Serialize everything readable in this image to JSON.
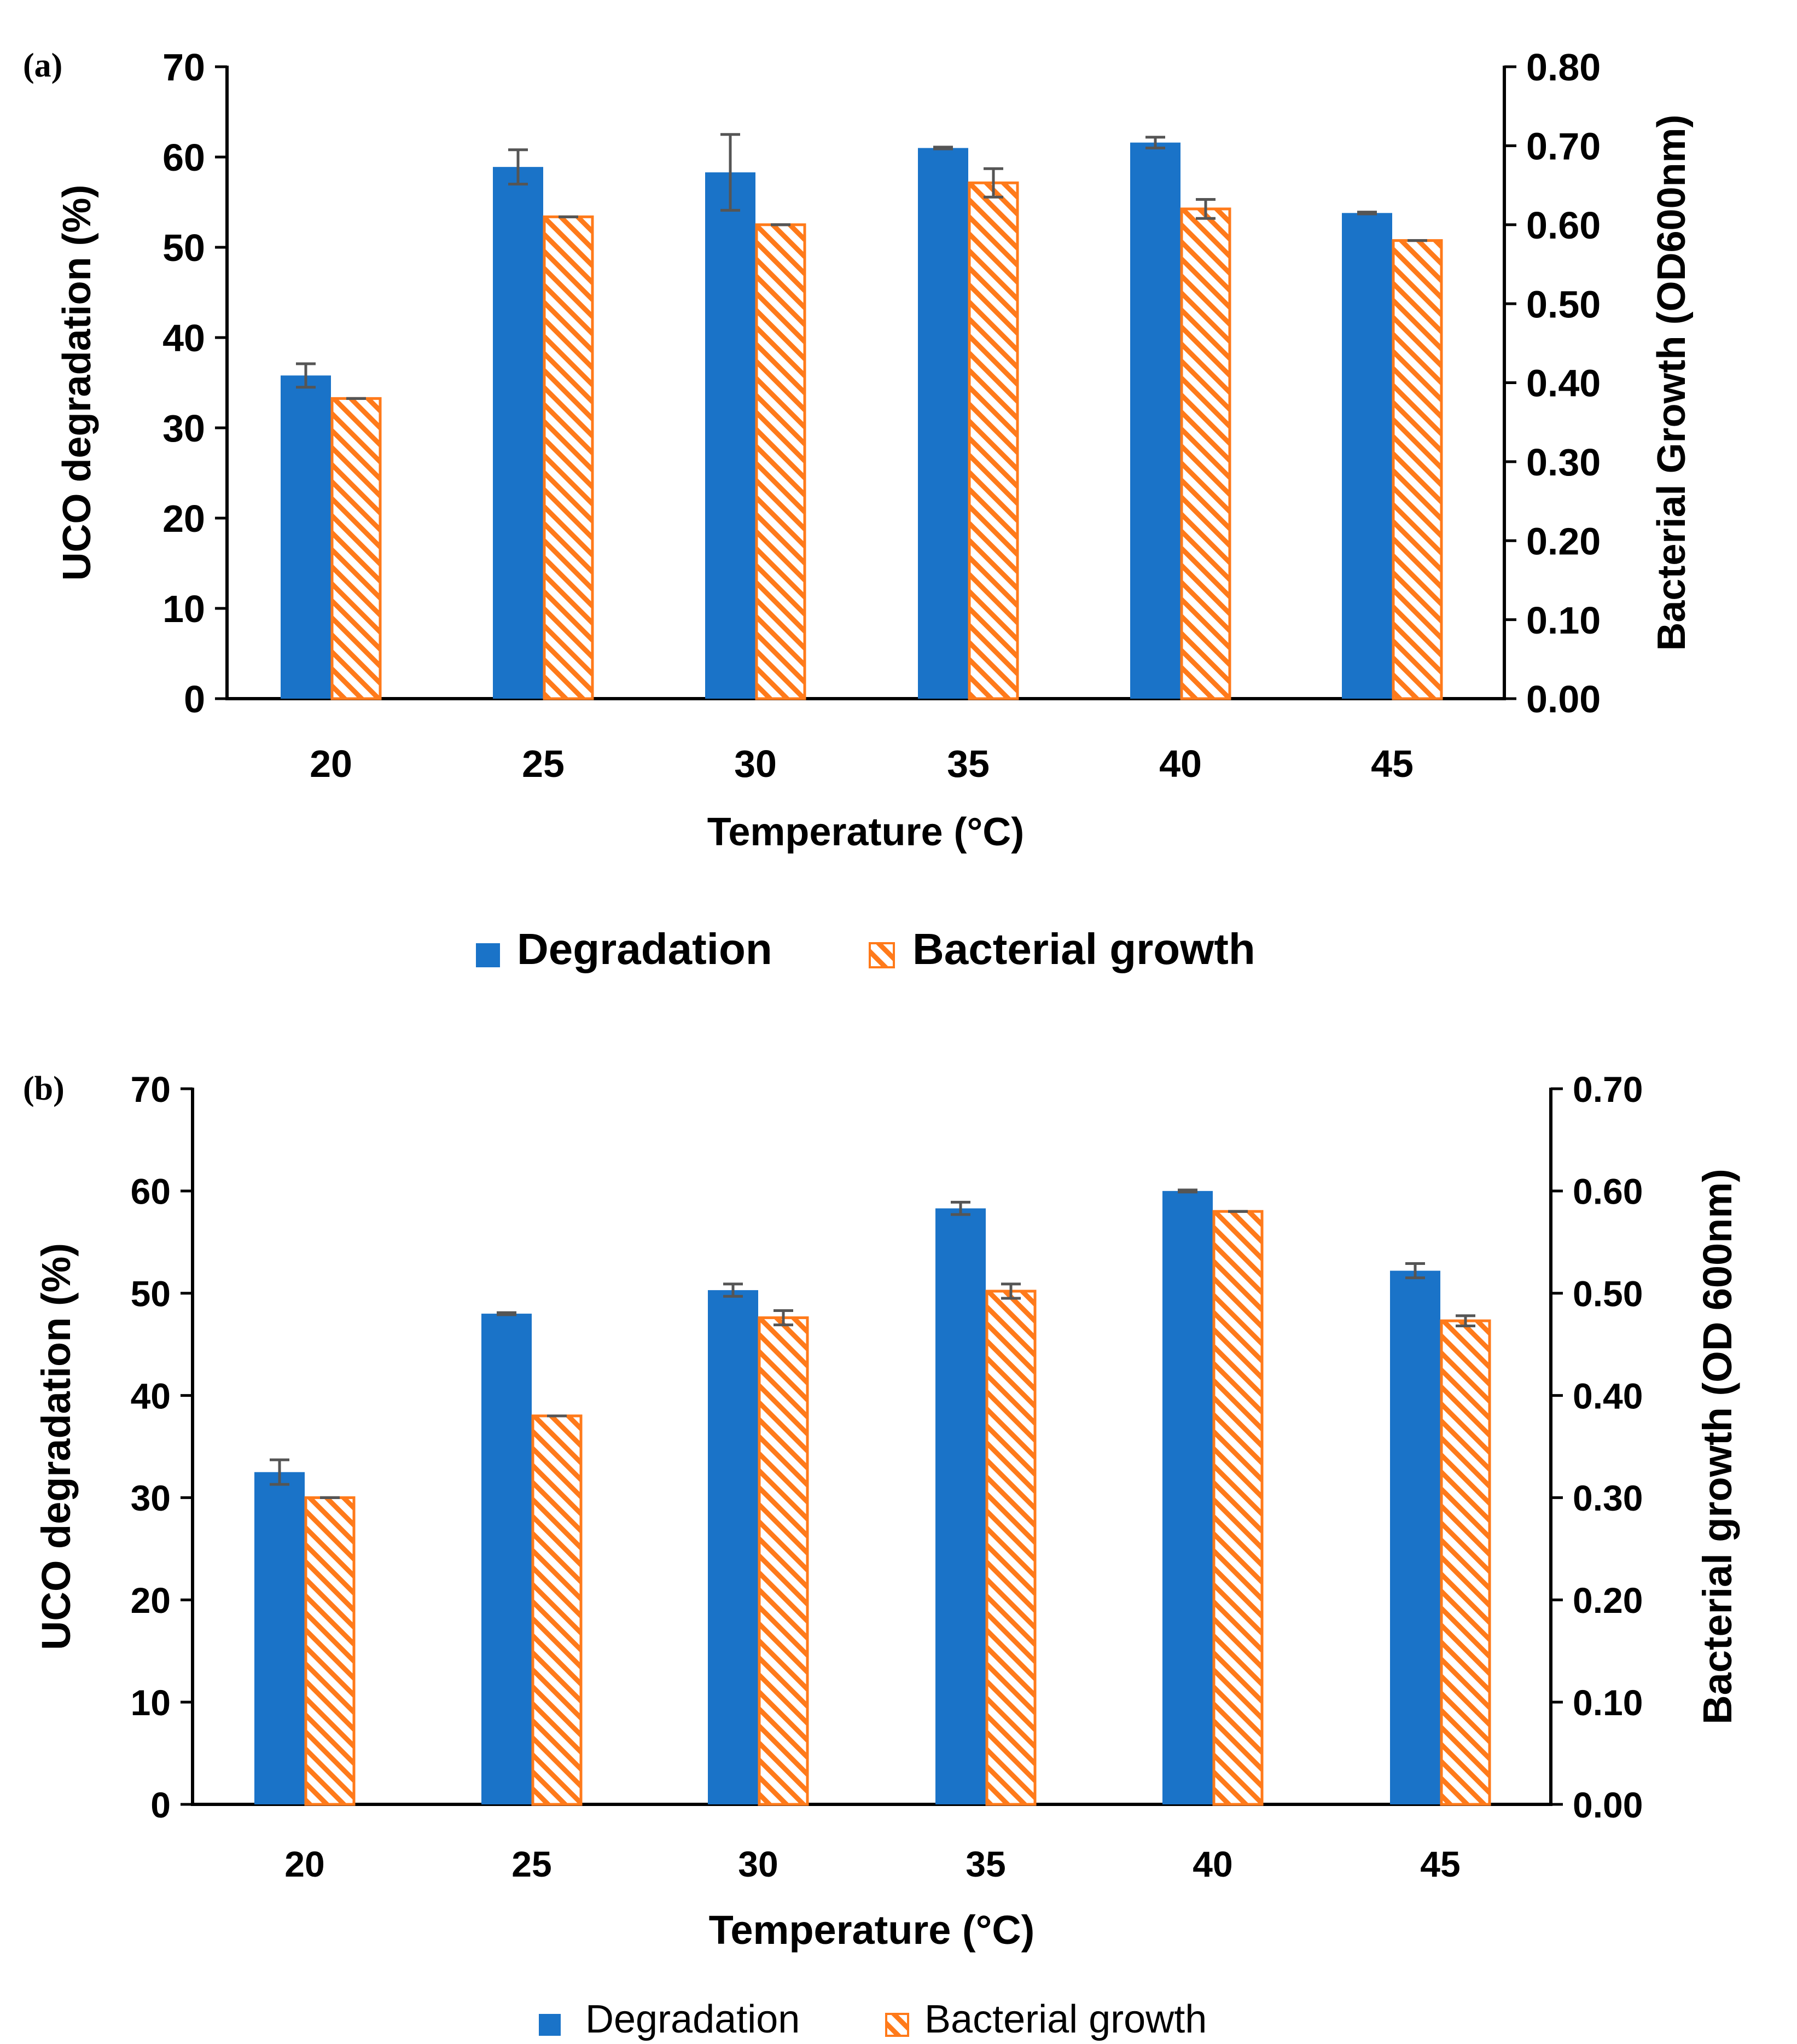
{
  "colors": {
    "degradation": "#1a73c8",
    "growth_stroke": "#ff7a1a",
    "growth_hatch": "#ff7a1a",
    "axis": "#000000",
    "error_bar": "#555555"
  },
  "chart_data": [
    {
      "type": "bar",
      "panel_label": "(a)",
      "title": "",
      "categories": [
        "20",
        "25",
        "30",
        "35",
        "40",
        "45"
      ],
      "xlabel": "Temperature (°C)",
      "ylabel": "UCO degradation (%)",
      "y2label": "Bacterial Growth (OD600nm)",
      "ylim": [
        0,
        70
      ],
      "y2lim": [
        0,
        0.8
      ],
      "yticks": [
        "0",
        "10",
        "20",
        "30",
        "40",
        "50",
        "60",
        "70"
      ],
      "y2ticks": [
        "0.00",
        "0.10",
        "0.20",
        "0.30",
        "0.40",
        "0.50",
        "0.60",
        "0.70",
        "0.80"
      ],
      "series": [
        {
          "name": "Degradation",
          "axis": "left",
          "style": "solid",
          "values": [
            35.8,
            58.9,
            58.3,
            61.0,
            61.6,
            53.8
          ],
          "errors": [
            1.3,
            1.9,
            4.2,
            0.1,
            0.6,
            0.1
          ]
        },
        {
          "name": "Bacterial growth",
          "axis": "right",
          "style": "hatched",
          "values": [
            0.38,
            0.61,
            0.6,
            0.653,
            0.62,
            0.58
          ],
          "errors": [
            0.0,
            0.0,
            0.0,
            0.018,
            0.012,
            0.0
          ]
        }
      ],
      "legend": {
        "position": "bottom",
        "bold": true,
        "items": [
          "Degradation",
          "Bacterial growth"
        ]
      }
    },
    {
      "type": "bar",
      "panel_label": "(b)",
      "title": "",
      "categories": [
        "20",
        "25",
        "30",
        "35",
        "40",
        "45"
      ],
      "xlabel": "Temperature (°C)",
      "ylabel": "UCO degradation (%)",
      "y2label": "Bacterial growth (OD 600nm)",
      "ylim": [
        0,
        70
      ],
      "y2lim": [
        0,
        0.7
      ],
      "yticks": [
        "0",
        "10",
        "20",
        "30",
        "40",
        "50",
        "60",
        "70"
      ],
      "y2ticks": [
        "0.00",
        "0.10",
        "0.20",
        "0.30",
        "0.40",
        "0.50",
        "0.60",
        "0.70"
      ],
      "series": [
        {
          "name": "Degradation",
          "axis": "left",
          "style": "solid",
          "values": [
            32.5,
            48.0,
            50.3,
            58.3,
            60.0,
            52.2
          ],
          "errors": [
            1.2,
            0.1,
            0.6,
            0.6,
            0.1,
            0.7
          ]
        },
        {
          "name": "Bacterial growth",
          "axis": "right",
          "style": "hatched",
          "values": [
            0.3,
            0.38,
            0.476,
            0.502,
            0.58,
            0.473
          ],
          "errors": [
            0.0,
            0.0,
            0.007,
            0.007,
            0.0,
            0.005
          ]
        }
      ],
      "legend": {
        "position": "bottom",
        "bold": false,
        "items": [
          "Degradation",
          "Bacterial growth"
        ]
      }
    }
  ]
}
